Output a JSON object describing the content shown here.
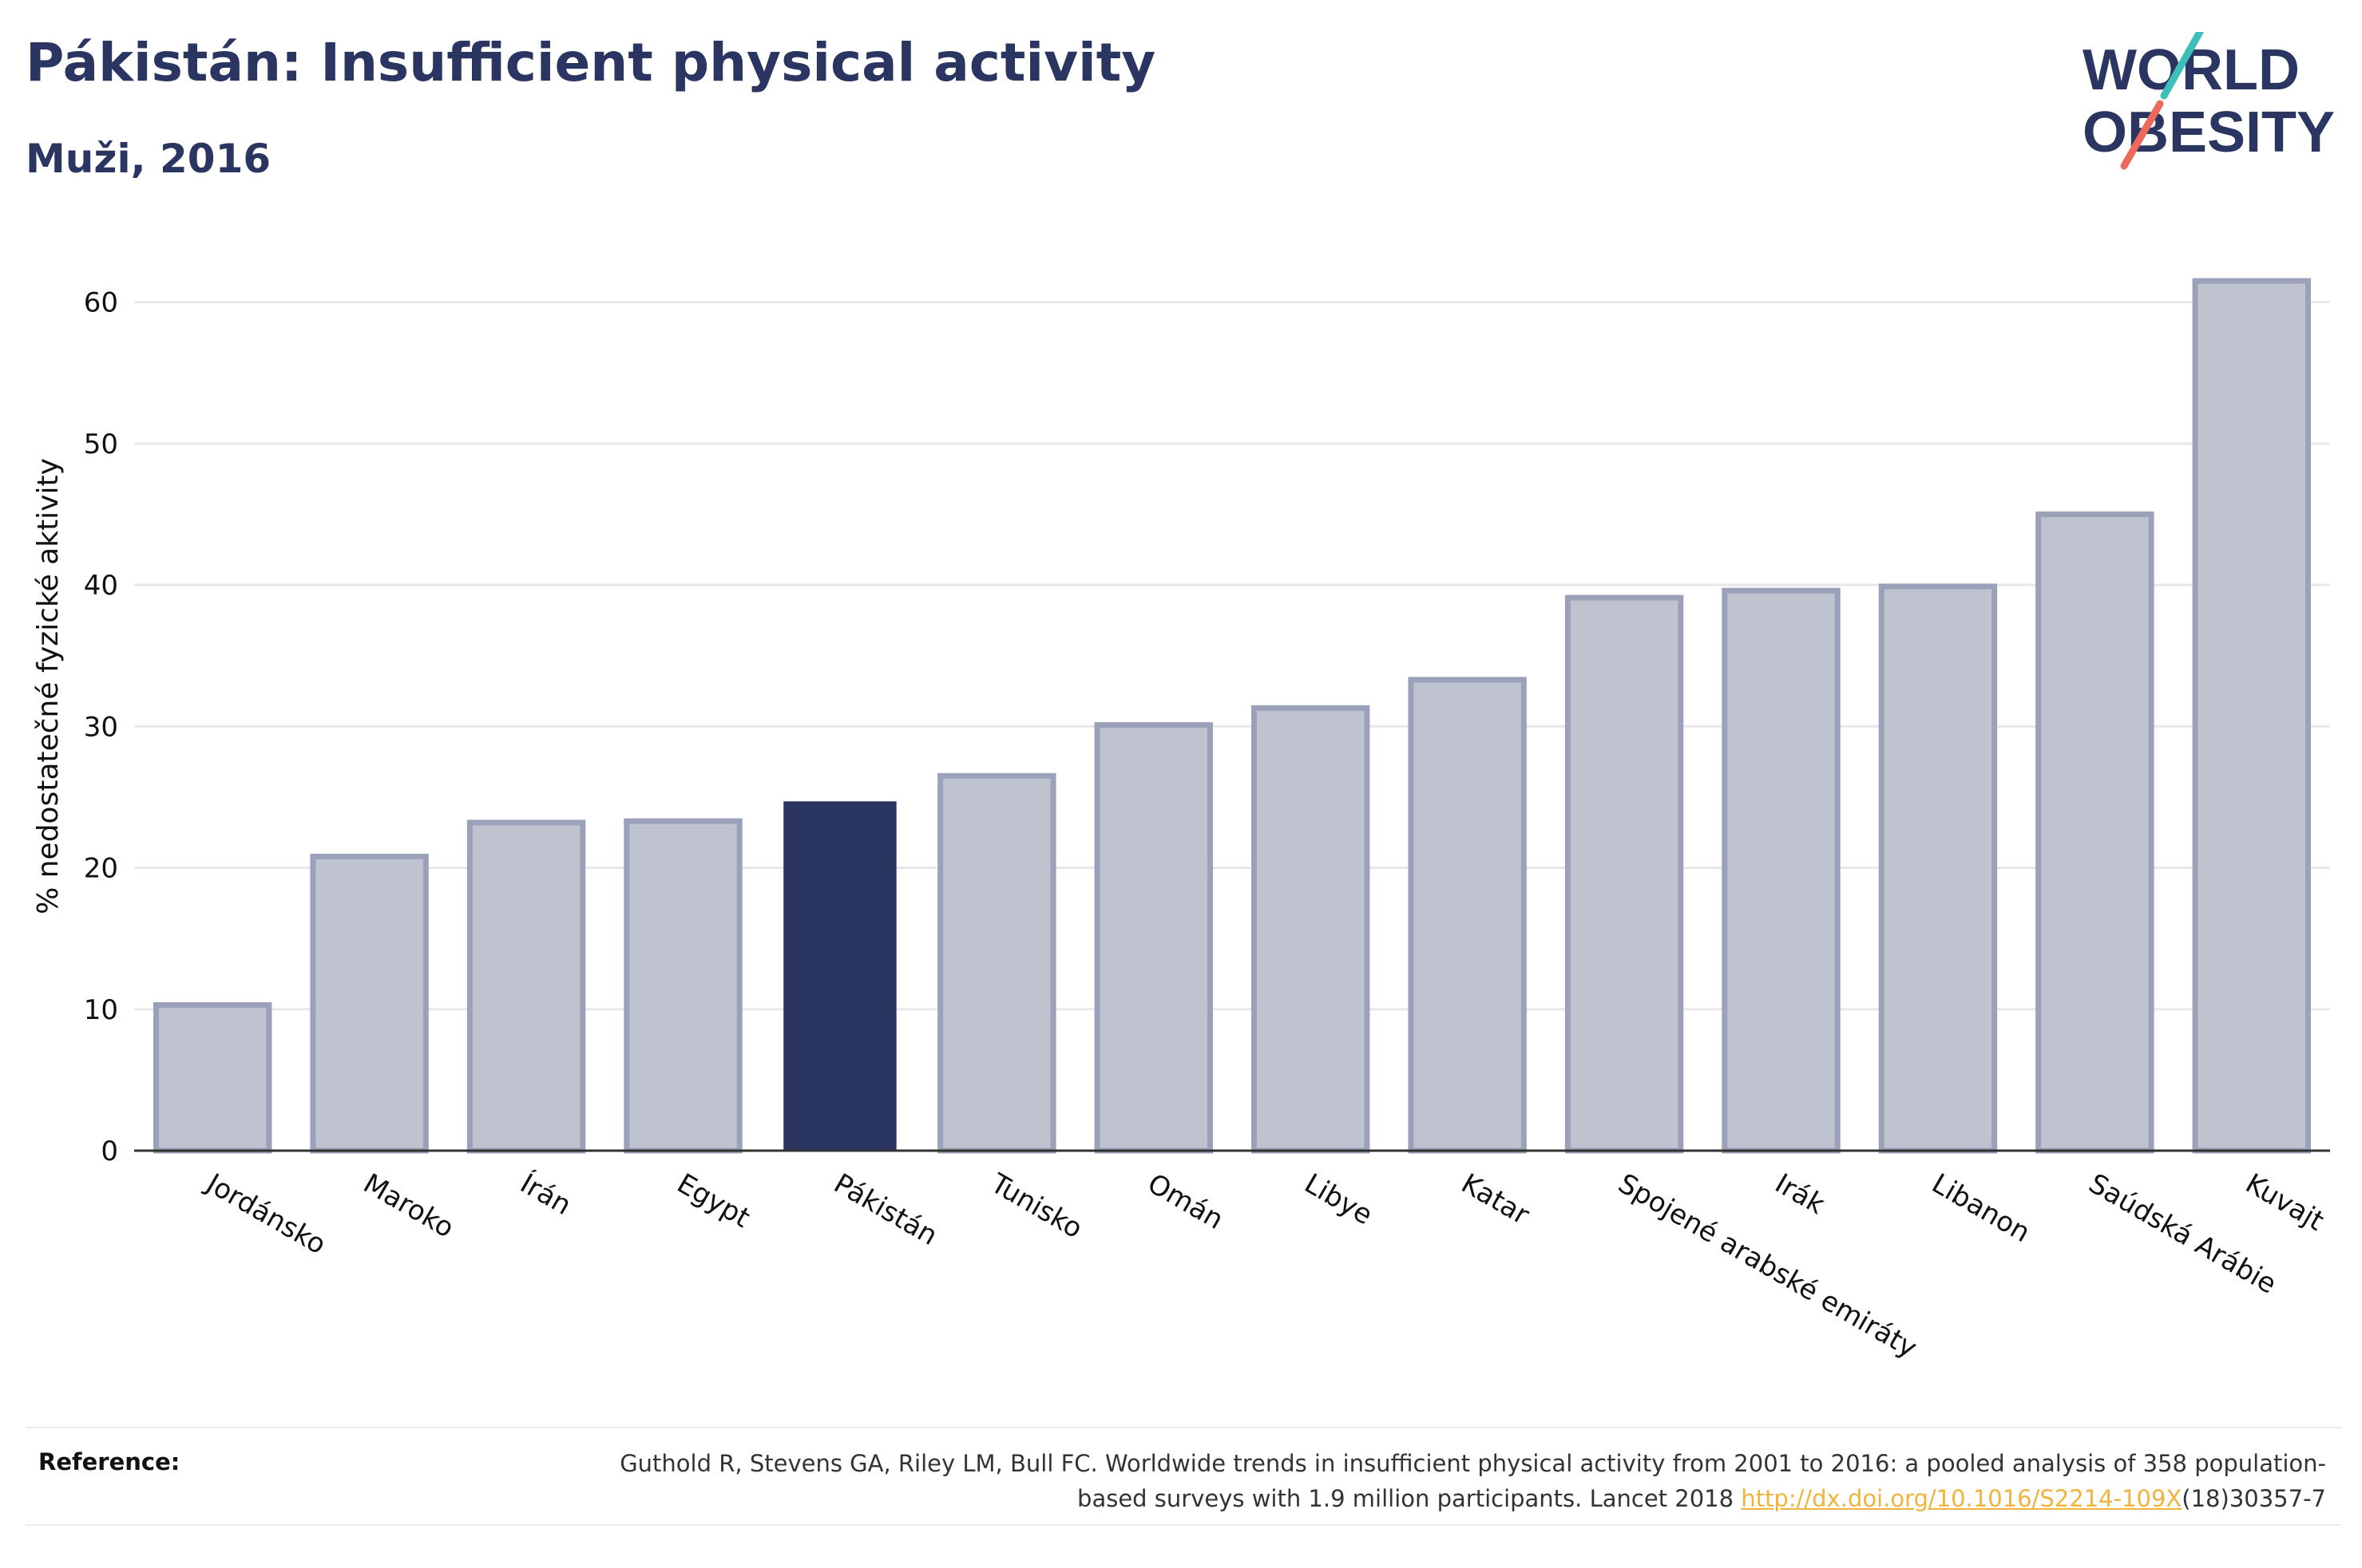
{
  "header": {
    "title": "Pákistán: Insufficient physical activity",
    "subtitle": "Muži, 2016"
  },
  "logo": {
    "line1": "WORLD",
    "line2": "OBESITY",
    "colors": {
      "text": "#2b3561",
      "slash_teal": "#3bbfb8",
      "slash_coral": "#ec6a5c"
    }
  },
  "chart_data": {
    "type": "bar",
    "categories": [
      "Jordánsko",
      "Maroko",
      "Írán",
      "Egypt",
      "Pákistán",
      "Tunisko",
      "Omán",
      "Libye",
      "Katar",
      "Spojené arabské emiráty",
      "Irák",
      "Libanon",
      "Saúdská Arábie",
      "Kuvajt"
    ],
    "values": [
      10.3,
      20.8,
      23.2,
      23.3,
      24.7,
      26.5,
      30.1,
      31.3,
      33.3,
      39.1,
      39.6,
      39.9,
      45.0,
      61.5
    ],
    "highlight": "Pákistán",
    "title": "Pákistán: Insufficient physical activity",
    "xlabel": "",
    "ylabel": "% nedostatečné fyzické aktivity",
    "ylim": [
      0,
      65
    ],
    "yticks": [
      0,
      10,
      20,
      30,
      40,
      50,
      60
    ],
    "grid": true,
    "legend": "none",
    "colors": {
      "highlight": "#2b3561",
      "other_fill": "#bfc3d0",
      "other_stroke": "#9ba1b8",
      "grid": "#e8e8ec",
      "axis": "#333333"
    }
  },
  "reference": {
    "label": "Reference:",
    "text_before": "Guthold R, Stevens GA, Riley LM, Bull FC. Worldwide trends in insufficient physical activity from 2001 to 2016: a pooled analysis of 358 population-based surveys with 1.9 million participants. Lancet 2018 ",
    "link": "http://dx.doi.org/10.1016/S2214-109X",
    "text_after": "(18)30357-7"
  }
}
